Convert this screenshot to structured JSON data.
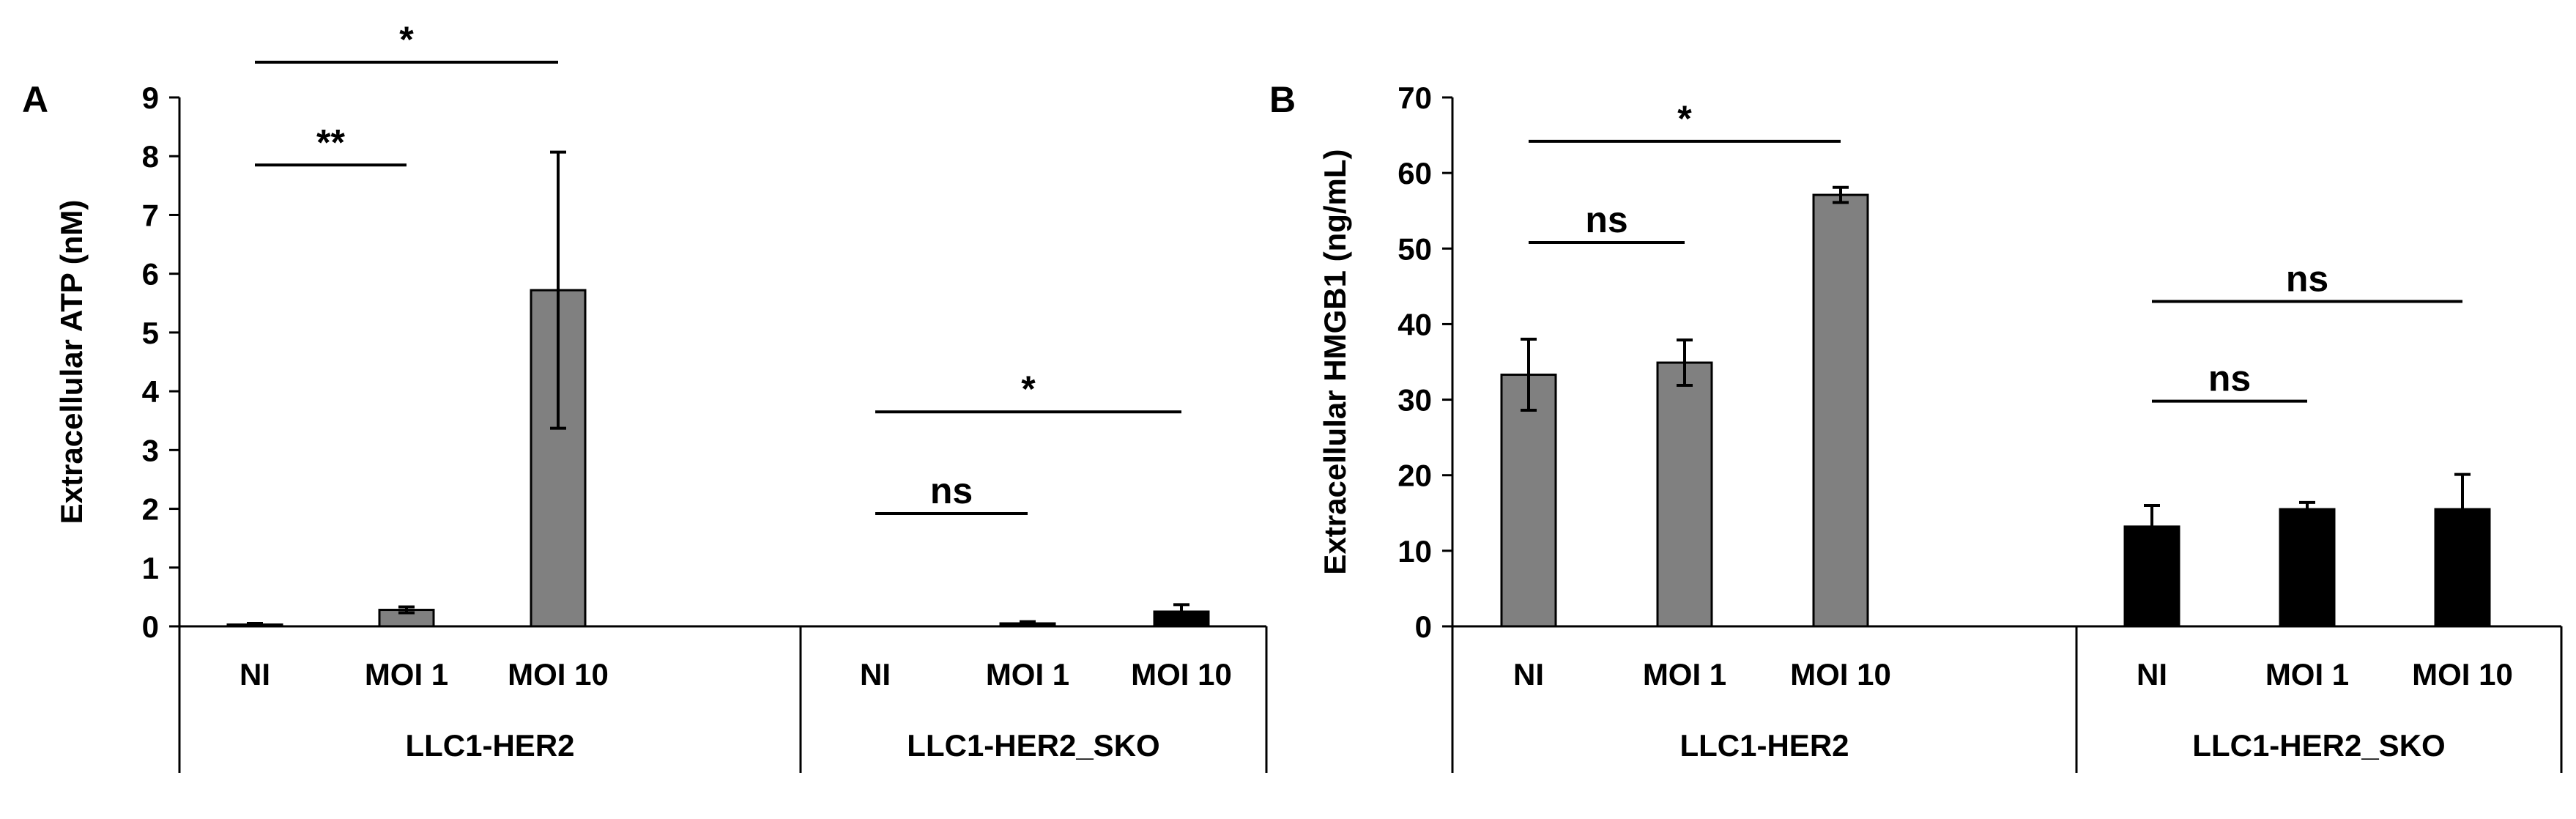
{
  "chart_data": [
    {
      "type": "bar",
      "panel_label": "A",
      "ylabel": "Extracellular ATP (nM)",
      "ylim": [
        0,
        9
      ],
      "yticks": [
        0,
        1,
        2,
        3,
        4,
        5,
        6,
        7,
        8,
        9
      ],
      "groups": [
        {
          "label": "LLC1-HER2",
          "categories": [
            "NI",
            "MOI 1",
            "MOI 10"
          ],
          "values": [
            0.03,
            0.28,
            5.72
          ],
          "errors": [
            0.02,
            0.05,
            2.35
          ],
          "color": "#808080"
        },
        {
          "label": "LLC1-HER2_SKO",
          "categories": [
            "NI",
            "MOI 1",
            "MOI 10"
          ],
          "values": [
            0.0,
            0.05,
            0.25
          ],
          "errors": [
            0.0,
            0.03,
            0.12
          ],
          "color": "#000000"
        }
      ],
      "significance": [
        {
          "group": 0,
          "from": 0,
          "to": 2,
          "y": 9.6,
          "label": "*"
        },
        {
          "group": 0,
          "from": 0,
          "to": 1,
          "y": 7.85,
          "label": "**"
        },
        {
          "group": 1,
          "from": 0,
          "to": 2,
          "y": 3.65,
          "label": "*"
        },
        {
          "group": 1,
          "from": 0,
          "to": 1,
          "y": 1.92,
          "label": "ns"
        }
      ]
    },
    {
      "type": "bar",
      "panel_label": "B",
      "ylabel": "Extracellular HMGB1 (ng/mL)",
      "ylim": [
        0,
        70
      ],
      "yticks": [
        0,
        10,
        20,
        30,
        40,
        50,
        60,
        70
      ],
      "groups": [
        {
          "label": "LLC1-HER2",
          "categories": [
            "NI",
            "MOI 1",
            "MOI 10"
          ],
          "values": [
            33.3,
            34.9,
            57.1
          ],
          "errors": [
            4.7,
            3.0,
            1.0
          ],
          "color": "#808080"
        },
        {
          "label": "LLC1-HER2_SKO",
          "categories": [
            "NI",
            "MOI 1",
            "MOI 10"
          ],
          "values": [
            13.2,
            15.5,
            15.5
          ],
          "errors": [
            2.8,
            0.9,
            4.6
          ],
          "color": "#000000"
        }
      ],
      "significance": [
        {
          "group": 0,
          "from": 0,
          "to": 2,
          "y": 64.2,
          "label": "*"
        },
        {
          "group": 0,
          "from": 0,
          "to": 1,
          "y": 50.8,
          "label": "ns"
        },
        {
          "group": 1,
          "from": 0,
          "to": 2,
          "y": 43.0,
          "label": "ns"
        },
        {
          "group": 1,
          "from": 0,
          "to": 1,
          "y": 29.8,
          "label": "ns"
        }
      ]
    }
  ]
}
